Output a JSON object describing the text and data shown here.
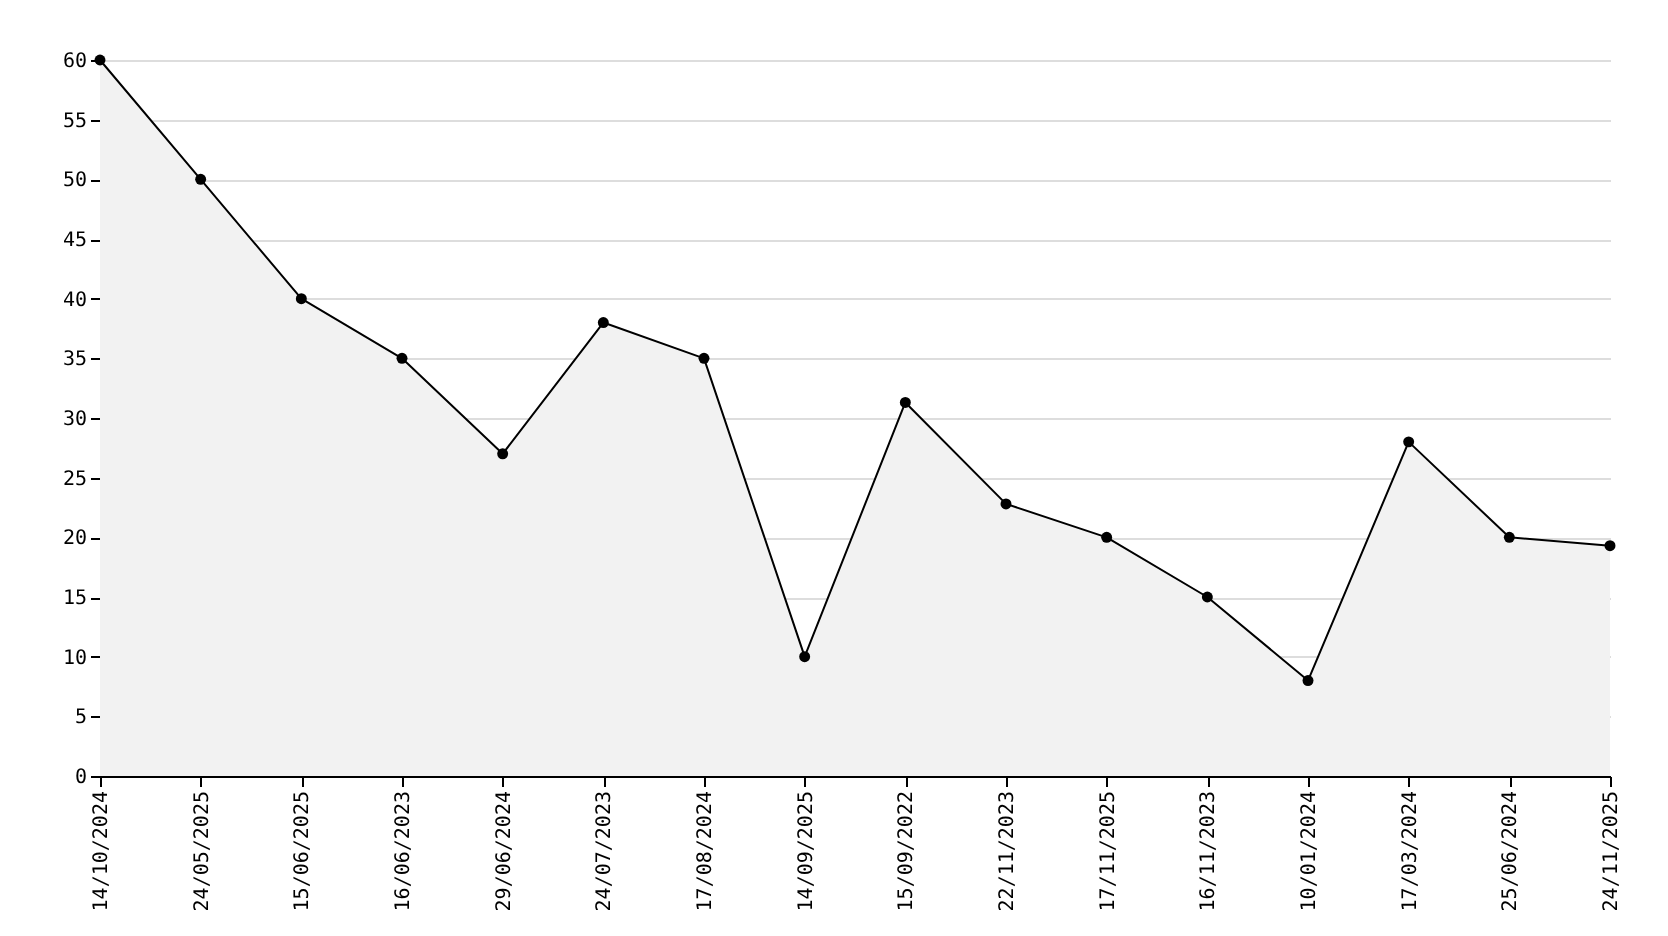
{
  "chart_data": {
    "type": "area",
    "categories": [
      "14/10/2024",
      "24/05/2025",
      "15/06/2025",
      "16/06/2023",
      "29/06/2024",
      "24/07/2023",
      "17/08/2024",
      "14/09/2025",
      "15/09/2022",
      "22/11/2023",
      "17/11/2025",
      "16/11/2023",
      "10/01/2024",
      "17/03/2024",
      "25/06/2024",
      "24/11/2025"
    ],
    "series": [
      {
        "color": "#000000",
        "values": [
          60,
          50,
          40,
          35,
          27,
          38,
          35,
          10,
          31.3,
          22.8,
          20,
          15,
          8,
          28,
          20,
          19.3
        ]
      }
    ],
    "ylim": [
      0,
      60
    ],
    "yticks": [
      0,
      5,
      10,
      15,
      20,
      25,
      30,
      35,
      40,
      45,
      50,
      55,
      60
    ],
    "grid": "y",
    "marker": "circle",
    "line_style": "solid"
  }
}
